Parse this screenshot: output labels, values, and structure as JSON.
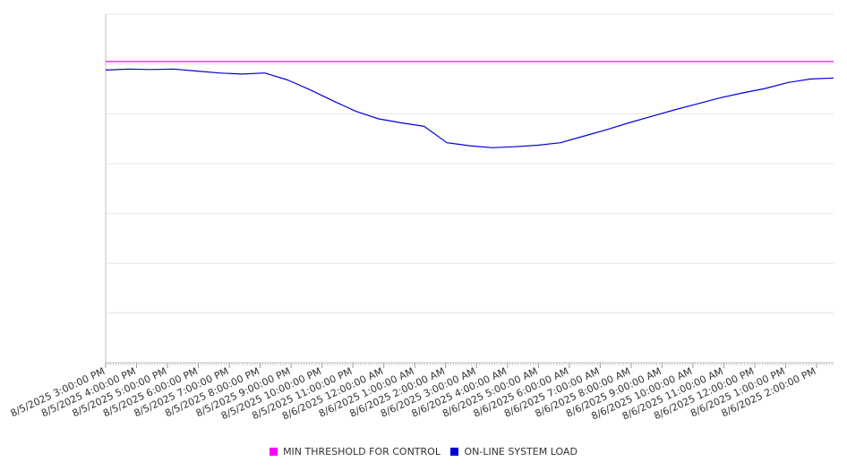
{
  "chart_data": {
    "type": "line",
    "title": "",
    "xlabel": "",
    "ylabel": "",
    "grid": true,
    "legend_position": "bottom",
    "x_tick_labels": [
      "8/5/2025 3:00:00 PM",
      "8/5/2025 4:00:00 PM",
      "8/5/2025 5:00:00 PM",
      "8/5/2025 6:00:00 PM",
      "8/5/2025 7:00:00 PM",
      "8/5/2025 8:00:00 PM",
      "8/5/2025 9:00:00 PM",
      "8/5/2025 10:00:00 PM",
      "8/5/2025 11:00:00 PM",
      "8/6/2025 12:00:00 AM",
      "8/6/2025 1:00:00 AM",
      "8/6/2025 2:00:00 AM",
      "8/6/2025 3:00:00 AM",
      "8/6/2025 4:00:00 AM",
      "8/6/2025 5:00:00 AM",
      "8/6/2025 6:00:00 AM",
      "8/6/2025 7:00:00 AM",
      "8/6/2025 8:00:00 AM",
      "8/6/2025 9:00:00 AM",
      "8/6/2025 10:00:00 AM",
      "8/6/2025 11:00:00 AM",
      "8/6/2025 12:00:00 PM",
      "8/6/2025 1:00:00 PM",
      "8/6/2025 2:00:00 PM"
    ],
    "ylim": [
      0,
      7
    ],
    "y_gridlines": [
      1,
      2,
      3,
      4,
      5,
      6
    ],
    "series": [
      {
        "name": "MIN THRESHOLD FOR CONTROL",
        "color": "#ff00ff",
        "values": [
          6.05,
          6.05
        ]
      },
      {
        "name": "ON-LINE SYSTEM LOAD",
        "color": "#0000dd",
        "values": [
          5.88,
          5.9,
          5.89,
          5.9,
          5.86,
          5.82,
          5.8,
          5.82,
          5.68,
          5.48,
          5.26,
          5.05,
          4.9,
          4.82,
          4.75,
          4.42,
          4.36,
          4.32,
          4.34,
          4.37,
          4.42,
          4.55,
          4.68,
          4.82,
          4.95,
          5.08,
          5.2,
          5.32,
          5.42,
          5.51,
          5.63,
          5.7,
          5.72
        ]
      }
    ]
  },
  "legend": {
    "items": [
      {
        "label": "MIN THRESHOLD FOR CONTROL",
        "color": "#ff00ff"
      },
      {
        "label": "ON-LINE SYSTEM LOAD",
        "color": "#0000dd"
      }
    ]
  }
}
